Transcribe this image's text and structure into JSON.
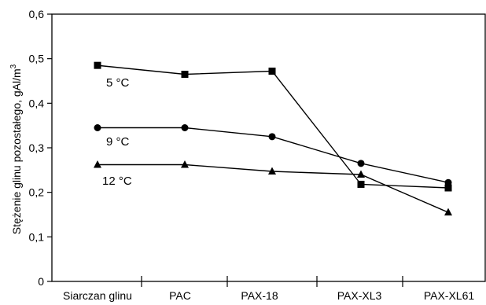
{
  "chart_data": {
    "type": "line",
    "title": "",
    "xlabel": "",
    "ylabel": "Stężenie glinu pozostałego, gAl/m",
    "ylabel_superscript": "3",
    "ylim": [
      0,
      0.6
    ],
    "yticks": [
      "0",
      "0,1",
      "0,2",
      "0,3",
      "0,4",
      "0,5",
      "0,6"
    ],
    "yticks_values": [
      0,
      0.1,
      0.2,
      0.3,
      0.4,
      0.5,
      0.6
    ],
    "grid": false,
    "legend": "none",
    "categories": [
      "Siarczan glinu",
      "PAC",
      "PAX-18",
      "PAX-XL3",
      "PAX-XL61"
    ],
    "series": [
      {
        "name": "5 °C",
        "marker": "square",
        "values": [
          0.485,
          0.465,
          0.472,
          0.218,
          0.21
        ]
      },
      {
        "name": "9 °C",
        "marker": "circle",
        "values": [
          0.345,
          0.345,
          0.325,
          0.265,
          0.222
        ]
      },
      {
        "name": "12 °C",
        "marker": "triangle",
        "values": [
          0.262,
          0.262,
          0.247,
          0.24,
          0.155
        ]
      }
    ]
  }
}
